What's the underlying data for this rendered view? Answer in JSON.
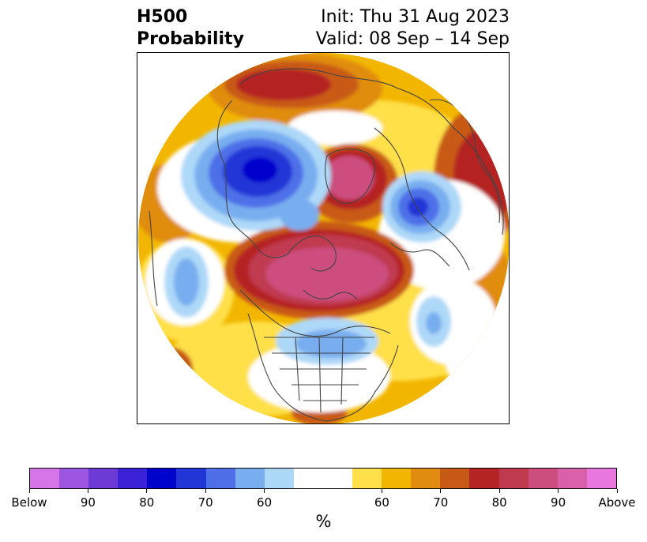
{
  "title": {
    "left_line1": "H500",
    "left_line2": "Probability",
    "right_line1": "Init: Thu 31 Aug 2023",
    "right_line2": "Valid: 08 Sep – 14 Sep"
  },
  "colorbar": {
    "units": "%",
    "tick_labels": [
      "Below",
      "90",
      "80",
      "70",
      "60",
      "60",
      "70",
      "80",
      "90",
      "Above"
    ],
    "below_colors": [
      "#d575e8",
      "#9b55e0",
      "#6e3ad6",
      "#3b22d6",
      "#0003cc",
      "#2235d6",
      "#4e6fe8",
      "#78aef0",
      "#aed8f8"
    ],
    "neutral_color": "#ffffff",
    "above_colors": [
      "#ffe04a",
      "#f2b600",
      "#e08c10",
      "#c85a18",
      "#b52424",
      "#c03a4f",
      "#cc4e7e",
      "#db60aa",
      "#e878e0"
    ]
  },
  "map": {
    "projection": "polar stereographic (north pole)",
    "field": "H500 probability"
  }
}
